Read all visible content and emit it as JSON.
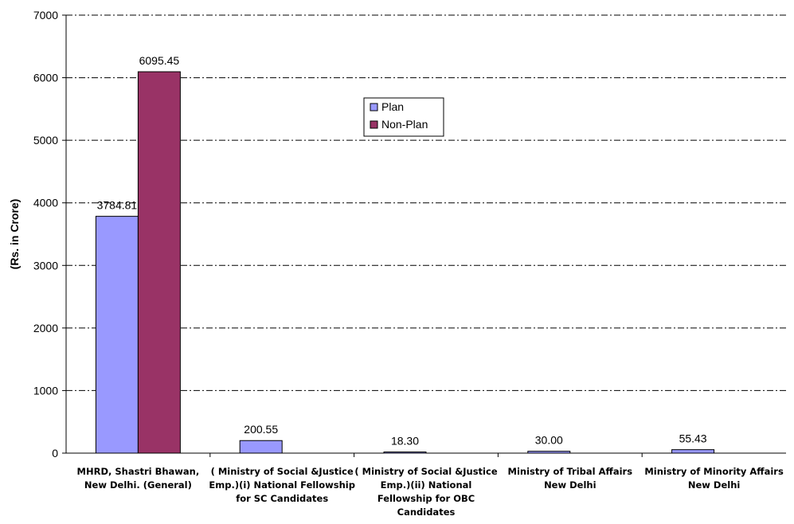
{
  "chart_data": {
    "type": "bar",
    "title": "",
    "xlabel": "",
    "ylabel": "(Rs. in Crore)",
    "ylim": [
      0,
      7000
    ],
    "yticks": [
      0,
      1000,
      2000,
      3000,
      4000,
      5000,
      6000,
      7000
    ],
    "grid": true,
    "legend_position": "upper-center",
    "categories": [
      [
        "MHRD,  Shastri Bhawan,",
        "New Delhi. (General)"
      ],
      [
        "( Ministry of Social &Justice",
        "Emp.)(i) National Fellowship",
        "for SC Candidates"
      ],
      [
        "( Ministry of Social &Justice",
        "Emp.)(ii)  National",
        "Fellowship for OBC",
        "Candidates"
      ],
      [
        "Ministry of Tribal Affairs",
        "New Delhi"
      ],
      [
        "Ministry of Minority Affairs",
        "New Delhi"
      ]
    ],
    "series": [
      {
        "name": "Plan",
        "color": "#9999ff",
        "values": [
          3784.81,
          200.55,
          18.3,
          30.0,
          55.43
        ],
        "labels": [
          "3784.81",
          "200.55",
          "18.30",
          "30.00",
          "55.43"
        ]
      },
      {
        "name": "Non-Plan",
        "color": "#993366",
        "values": [
          6095.45,
          null,
          null,
          null,
          null
        ],
        "labels": [
          "6095.45",
          null,
          null,
          null,
          null
        ]
      }
    ]
  }
}
